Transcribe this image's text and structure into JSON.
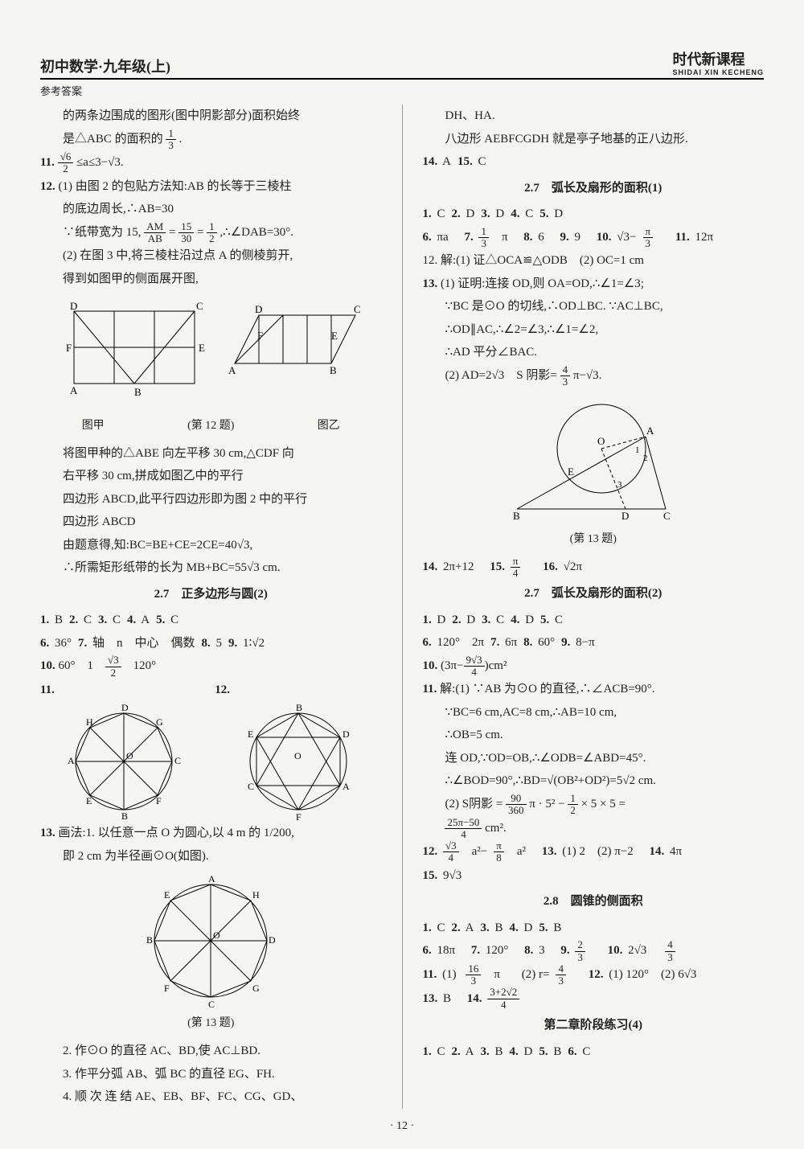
{
  "header": {
    "title_left": "初中数学·九年级(上)",
    "subtitle": "参考答案",
    "title_right": "时代新课程",
    "pinyin": "SHIDAI XIN KECHENG"
  },
  "left_col": {
    "p1": "的两条边围成的图形(图中阴影部分)面积始终",
    "p2_pre": "是△ABC 的面积的",
    "p2_frac_n": "1",
    "p2_frac_d": "3",
    "p2_post": ".",
    "q11_pre": "11.",
    "q11_body": " ≤a≤3−√3.",
    "q11_frac_n": "√6",
    "q11_frac_d": "2",
    "q12_num": "12.",
    "q12_1": "(1) 由图 2 的包贴方法知:AB 的长等于三棱柱",
    "q12_1b": "的底边周长,∴AB=30",
    "q12_1c_pre": "∵纸带宽为 15,",
    "q12_1c_frac1_n": "AM",
    "q12_1c_frac1_d": "AB",
    "q12_1c_mid": "=",
    "q12_1c_frac2_n": "15",
    "q12_1c_frac2_d": "30",
    "q12_1c_mid2": "=",
    "q12_1c_frac3_n": "1",
    "q12_1c_frac3_d": "2",
    "q12_1c_post": ",∴∠DAB=30°.",
    "q12_2": "(2) 在图 3 中,将三棱柱沿过点 A 的侧棱剪开,",
    "q12_2b": "得到如图甲的侧面展开图,",
    "fig12_left": "图甲",
    "fig12_right": "图乙",
    "fig12_caption": "(第 12 题)",
    "q12_3": "将图甲种的△ABE 向左平移 30 cm,△CDF 向",
    "q12_3b": "右平移 30 cm,拼成如图乙中的平行",
    "q12_3c": "四边形 ABCD,此平行四边形即为图 2 中的平行",
    "q12_3d": "四边形 ABCD",
    "q12_4": "由题意得,知:BC=BE+CE=2CE=40√3,",
    "q12_5": "∴所需矩形纸带的长为 MB+BC=55√3 cm.",
    "sec27_2": "2.7　正多边形与圆(2)",
    "s272": {
      "l1": [
        [
          "1.",
          "B"
        ],
        [
          "2.",
          "C"
        ],
        [
          "3.",
          "C"
        ],
        [
          "4.",
          "A"
        ],
        [
          "5.",
          "C"
        ]
      ],
      "l2a": [
        [
          "6.",
          "36°"
        ],
        [
          "7.",
          "轴　n　中心　偶数"
        ],
        [
          "8.",
          "5"
        ],
        [
          "9.",
          "1∶√2"
        ]
      ],
      "l3_10": "10.",
      "l3_vals": "60°　1　　　120°",
      "l3_frac_n": "√3",
      "l3_frac_d": "2"
    },
    "q11circ": "11.",
    "q12circ": "12.",
    "q13_num": "13.",
    "q13_1": "画法:1. 以任意一点 O 为圆心,以 4 m 的 1/200,",
    "q13_1b": "即 2 cm 为半径画⊙O(如图).",
    "fig13_caption": "(第 13 题)",
    "q13_2": "2. 作⊙O 的直径 AC、BD,使 AC⊥BD.",
    "q13_3": "3. 作平分弧 AB、弧 BC 的直径 EG、FH.",
    "q13_4": "4. 顺 次 连 结 AE、EB、BF、FC、CG、GD、"
  },
  "right_col": {
    "p1": "DH、HA.",
    "p2": "八边形 AEBFCGDH 就是亭子地基的正八边形.",
    "a1415": [
      [
        "14.",
        "A"
      ],
      [
        "15.",
        "C"
      ]
    ],
    "sec271": "2.7　弧长及扇形的面积(1)",
    "s271": {
      "l1": [
        [
          "1.",
          "C"
        ],
        [
          "2.",
          "D"
        ],
        [
          "3.",
          "D"
        ],
        [
          "4.",
          "C"
        ],
        [
          "5.",
          "D"
        ]
      ],
      "l2_6": "6.",
      "l2_6v": "πa",
      "l2_7": "7.",
      "l2_7_frac_n": "1",
      "l2_7_frac_d": "3",
      "l2_7_post": "π",
      "l2_8": "8.",
      "l2_8v": "6",
      "l2_9": "9.",
      "l2_9v": "9",
      "l2_10": "10.",
      "l2_10_pre": "√3−",
      "l2_10_frac_n": "π",
      "l2_10_frac_d": "3",
      "l2_11": "11.",
      "l2_11v": "12π"
    },
    "q12r": "12. 解:(1) 证△OCA≌△ODB　(2) OC=1 cm",
    "q13r_num": "13.",
    "q13r_1": "(1) 证明:连接 OD,则 OA=OD,∴∠1=∠3;",
    "q13r_2": "∵BC 是⊙O 的切线,∴OD⊥BC. ∵AC⊥BC,",
    "q13r_3": "∴OD∥AC,∴∠2=∠3,∴∠1=∠2,",
    "q13r_4": "∴AD 平分∠BAC.",
    "q13r_5_pre": "(2) AD=2√3　S 阴影=",
    "q13r_5_frac_n": "4",
    "q13r_5_frac_d": "3",
    "q13r_5_post": "π−√3.",
    "fig13r_caption": "(第 13 题)",
    "s271b_14": "14.",
    "s271b_14v": "2π+12",
    "s271b_15": "15.",
    "s271b_15_frac_n": "π",
    "s271b_15_frac_d": "4",
    "s271b_16": "16.",
    "s271b_16v": "√2π",
    "sec272": "2.7　弧长及扇形的面积(2)",
    "s272r": {
      "l1": [
        [
          "1.",
          "D"
        ],
        [
          "2.",
          "D"
        ],
        [
          "3.",
          "C"
        ],
        [
          "4.",
          "D"
        ],
        [
          "5.",
          "C"
        ]
      ],
      "l2": [
        [
          "6.",
          "120°　2π"
        ],
        [
          "7.",
          "6π"
        ],
        [
          "8.",
          "60°"
        ],
        [
          "9.",
          "8−π"
        ]
      ],
      "l3_10": "10.",
      "l3_pre": "(3π−",
      "l3_frac_n": "9√3",
      "l3_frac_d": "4",
      "l3_post": ")cm²"
    },
    "q11r_num": "11.",
    "q11r_1": "解:(1) ∵AB 为⊙O 的直径,∴∠ACB=90°.",
    "q11r_2": "∵BC=6 cm,AC=8 cm,∴AB=10 cm,",
    "q11r_3": "∴OB=5 cm.",
    "q11r_4": "连 OD,∵OD=OB,∴∠ODB=∠ABD=45°.",
    "q11r_5": "∴∠BOD=90°,∴BD=√(OB²+OD²)=5√2 cm.",
    "q11r_6_pre": "(2) S阴影 = ",
    "q11r_6_f1n": "90",
    "q11r_6_f1d": "360",
    "q11r_6_mid1": " π · 5² − ",
    "q11r_6_f2n": "1",
    "q11r_6_f2d": "2",
    "q11r_6_mid2": " × 5 × 5 =",
    "q11r_7_fn": "25π−50",
    "q11r_7_fd": "4",
    "q11r_7_post": " cm².",
    "l12_12": "12.",
    "l12_f1n": "√3",
    "l12_f1d": "4",
    "l12_mid1": "a²−",
    "l12_f2n": "π",
    "l12_f2d": "8",
    "l12_mid2": "a²",
    "l12_13": "13.",
    "l12_13v": "(1) 2　(2) π−2",
    "l12_14": "14.",
    "l12_14v": "4π",
    "l15_15": "15.",
    "l15_15v": "9√3",
    "sec28": "2.8　圆锥的侧面积",
    "s28": {
      "l1": [
        [
          "1.",
          "C"
        ],
        [
          "2.",
          "A"
        ],
        [
          "3.",
          "B"
        ],
        [
          "4.",
          "D"
        ],
        [
          "5.",
          "B"
        ]
      ],
      "l2_6": "6.",
      "l2_6v": "18π",
      "l2_7": "7.",
      "l2_7v": "120°",
      "l2_8": "8.",
      "l2_8v": "3",
      "l2_9": "9.",
      "l2_9_fn": "2",
      "l2_9_fd": "3",
      "l2_10": "10.",
      "l2_10v": "2√3　",
      "l2_10_fn": "4",
      "l2_10_fd": "3",
      "l3_11": "11.",
      "l3_11_1": "(1) ",
      "l3_11_f1n": "16",
      "l3_11_f1d": "3",
      "l3_11_1p": "π",
      "l3_11_2": "(2) r=",
      "l3_11_f2n": "4",
      "l3_11_f2d": "3",
      "l3_12": "12.",
      "l3_12v": "(1) 120°　(2) 6√3",
      "l4_13": "13.",
      "l4_13v": "B",
      "l4_14": "14.",
      "l4_14_fn": "3+2√2",
      "l4_14_fd": "4"
    },
    "sec_ch2": "第二章阶段练习(4)",
    "ch2_l1": [
      [
        "1.",
        "C"
      ],
      [
        "2.",
        "A"
      ],
      [
        "3.",
        "B"
      ],
      [
        "4.",
        "D"
      ],
      [
        "5.",
        "B"
      ],
      [
        "6.",
        "C"
      ]
    ]
  },
  "footer": "· 12 ·"
}
